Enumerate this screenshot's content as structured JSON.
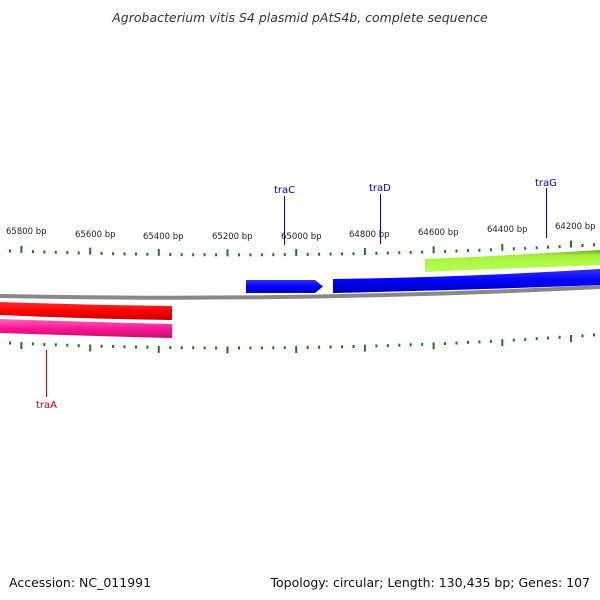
{
  "title": "Agrobacterium vitis S4 plasmid pAtS4b, complete sequence",
  "footer": {
    "accession": "Accession: NC_011991",
    "topology": "Topology: circular; Length: 130,435 bp; Genes: 107"
  },
  "scale": {
    "labels": [
      "65800 bp",
      "65600 bp",
      "65400 bp",
      "65200 bp",
      "65000 bp",
      "64800 bp",
      "64600 bp",
      "64400 bp",
      "64200 bp"
    ]
  },
  "genes": [
    {
      "name": "traC",
      "color": "#0000cc"
    },
    {
      "name": "traD",
      "color": "#0000cc"
    },
    {
      "name": "traG",
      "color": "#0000cc"
    },
    {
      "name": "traA",
      "color": "#cc0000"
    }
  ],
  "feature_colors": {
    "forward": "#0000ff",
    "reverse": "#ff0000",
    "reverse_alt": "#ff1493",
    "other": "#99ee33",
    "backbone": "#888888",
    "ticks": "#1a7a1a"
  }
}
